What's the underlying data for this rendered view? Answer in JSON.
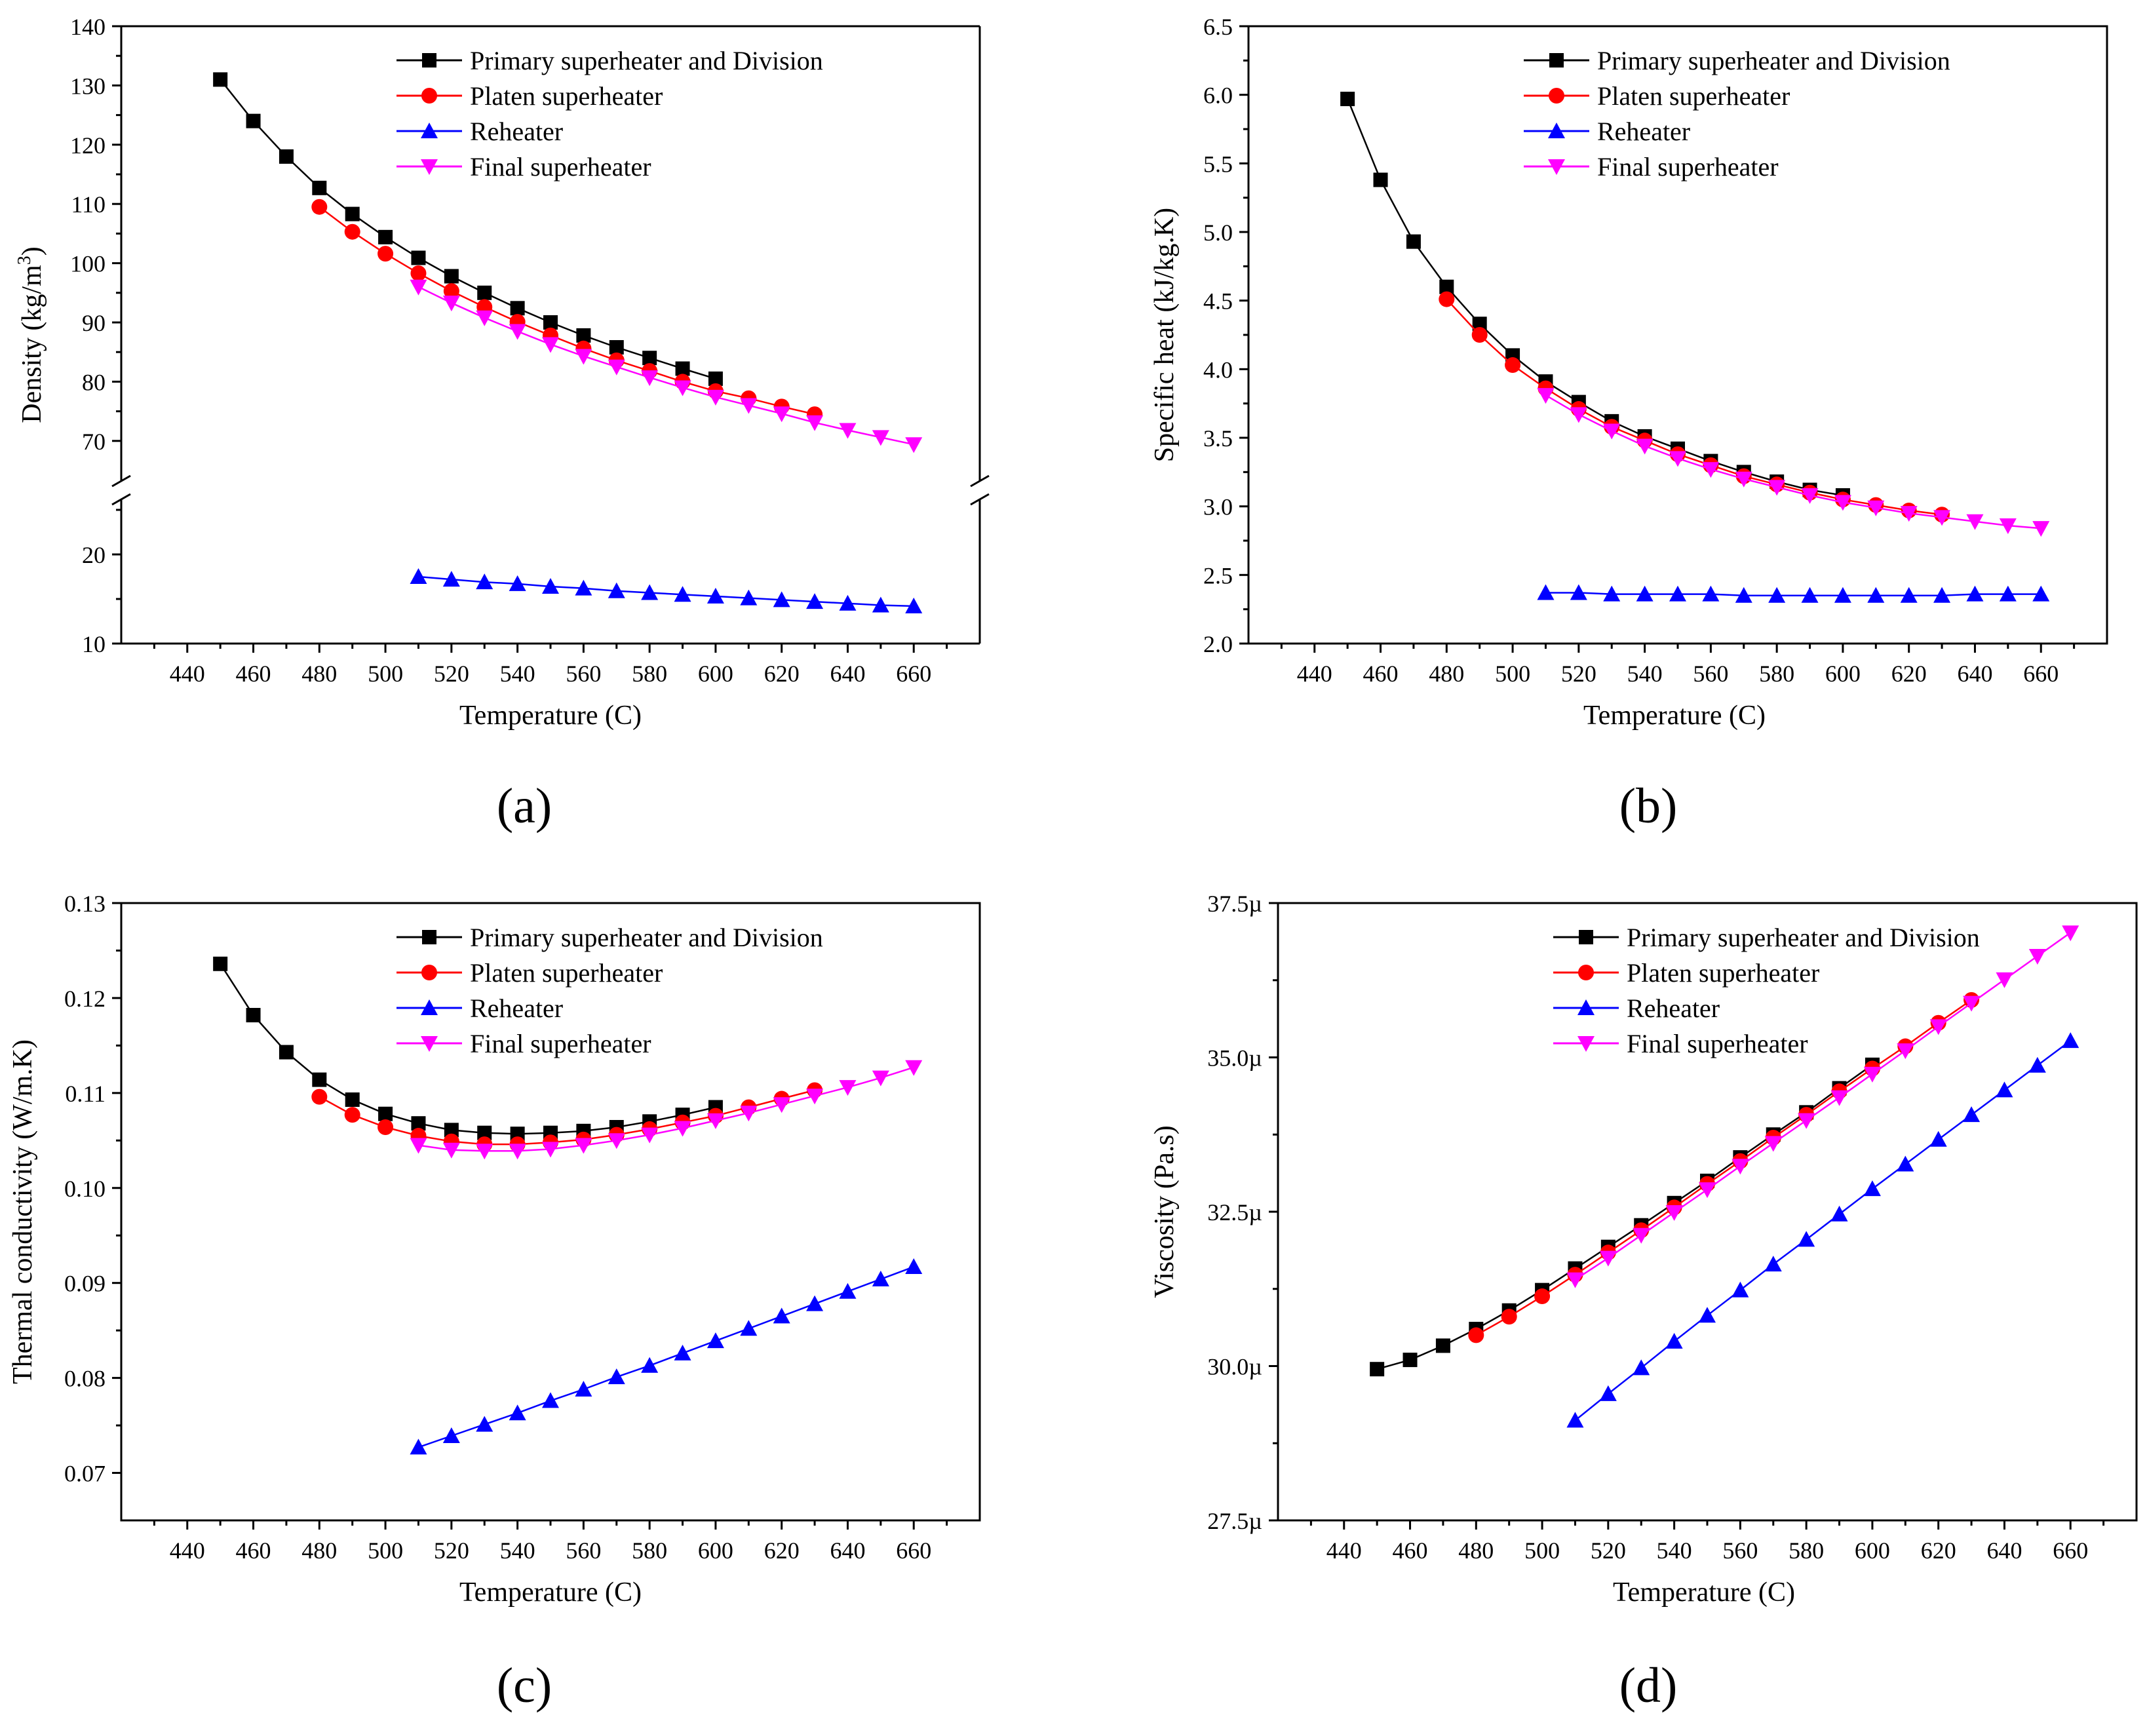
{
  "legend_labels": [
    "Primary superheater and Division",
    "Platen superheater",
    "Reheater",
    "Final superheater"
  ],
  "series_colors": [
    "#000000",
    "#ff0000",
    "#0000ff",
    "#ff00ff"
  ],
  "series_markers": [
    "square",
    "circle",
    "triangle-up",
    "triangle-down"
  ],
  "chart_data": [
    {
      "type": "line",
      "panel_label": "(a)",
      "xlabel": "Temperature (C)",
      "ylabel": "Density (kg/m³)",
      "ylabel_base": "Density (kg/m",
      "ylabel_sup": "3",
      "ylabel_close": ")",
      "xlim": [
        420,
        680
      ],
      "x_ticks": [
        "440",
        "460",
        "480",
        "500",
        "520",
        "540",
        "560",
        "580",
        "600",
        "620",
        "640",
        "660"
      ],
      "axis_break": true,
      "upper_ylim": [
        65,
        140
      ],
      "upper_y_ticks": [
        "70",
        "80",
        "90",
        "100",
        "110",
        "120",
        "130",
        "140"
      ],
      "lower_ylim": [
        10,
        25
      ],
      "lower_y_ticks": [
        "10",
        "20"
      ],
      "legend_position": "top-right",
      "series": [
        {
          "name": "Primary superheater and Division",
          "x": [
            450,
            460,
            470,
            480,
            490,
            500,
            510,
            520,
            530,
            540,
            550,
            560,
            570,
            580,
            590,
            600
          ],
          "y": [
            131,
            124,
            118,
            112.7,
            108.3,
            104.4,
            100.9,
            97.8,
            95,
            92.4,
            90,
            87.8,
            85.8,
            84,
            82.2,
            80.5
          ]
        },
        {
          "name": "Platen superheater",
          "x": [
            480,
            490,
            500,
            510,
            520,
            530,
            540,
            550,
            560,
            570,
            580,
            590,
            600,
            610,
            620,
            630
          ],
          "y": [
            109.5,
            105.3,
            101.6,
            98.3,
            95.3,
            92.6,
            90.1,
            87.8,
            85.6,
            83.6,
            81.8,
            80,
            78.4,
            77.2,
            75.8,
            74.5
          ]
        },
        {
          "name": "Reheater",
          "x": [
            510,
            520,
            530,
            540,
            550,
            560,
            570,
            580,
            590,
            600,
            610,
            620,
            630,
            640,
            650,
            660
          ],
          "y": [
            17.5,
            17.2,
            16.9,
            16.7,
            16.4,
            16.2,
            15.9,
            15.7,
            15.5,
            15.3,
            15.1,
            14.9,
            14.7,
            14.5,
            14.3,
            14.2
          ]
        },
        {
          "name": "Final superheater",
          "x": [
            510,
            520,
            530,
            540,
            550,
            560,
            570,
            580,
            590,
            600,
            610,
            620,
            630,
            640,
            650,
            660
          ],
          "y": [
            96,
            93.3,
            90.8,
            88.5,
            86.3,
            84.3,
            82.5,
            80.7,
            79,
            77.4,
            76,
            74.6,
            73.1,
            71.8,
            70.6,
            69.4
          ]
        }
      ]
    },
    {
      "type": "line",
      "panel_label": "(b)",
      "xlabel": "Temperature (C)",
      "ylabel": "Specific heat (kJ/kg.K)",
      "xlim": [
        420,
        680
      ],
      "x_ticks": [
        "440",
        "460",
        "480",
        "500",
        "520",
        "540",
        "560",
        "580",
        "600",
        "620",
        "640",
        "660"
      ],
      "ylim": [
        2.0,
        6.5
      ],
      "y_ticks": [
        "2.0",
        "2.5",
        "3.0",
        "3.5",
        "4.0",
        "4.5",
        "5.0",
        "5.5",
        "6.0",
        "6.5"
      ],
      "legend_position": "top-right",
      "series": [
        {
          "name": "Primary superheater and Division",
          "x": [
            450,
            460,
            470,
            480,
            490,
            500,
            510,
            520,
            530,
            540,
            550,
            560,
            570,
            580,
            590,
            600
          ],
          "y": [
            5.97,
            5.38,
            4.93,
            4.6,
            4.33,
            4.1,
            3.91,
            3.76,
            3.62,
            3.51,
            3.42,
            3.33,
            3.25,
            3.18,
            3.12,
            3.08
          ]
        },
        {
          "name": "Platen superheater",
          "x": [
            480,
            490,
            500,
            510,
            520,
            530,
            540,
            550,
            560,
            570,
            580,
            590,
            600,
            610,
            620,
            630
          ],
          "y": [
            4.51,
            4.25,
            4.03,
            3.86,
            3.71,
            3.58,
            3.48,
            3.38,
            3.3,
            3.22,
            3.16,
            3.1,
            3.05,
            3.01,
            2.97,
            2.94
          ]
        },
        {
          "name": "Reheater",
          "x": [
            510,
            520,
            530,
            540,
            550,
            560,
            570,
            580,
            590,
            600,
            610,
            620,
            630,
            640,
            650,
            660
          ],
          "y": [
            2.37,
            2.37,
            2.36,
            2.36,
            2.36,
            2.36,
            2.35,
            2.35,
            2.35,
            2.35,
            2.35,
            2.35,
            2.35,
            2.36,
            2.36,
            2.36
          ]
        },
        {
          "name": "Final superheater",
          "x": [
            510,
            520,
            530,
            540,
            550,
            560,
            570,
            580,
            590,
            600,
            610,
            620,
            630,
            640,
            650,
            660
          ],
          "y": [
            3.81,
            3.67,
            3.55,
            3.44,
            3.35,
            3.27,
            3.2,
            3.14,
            3.08,
            3.03,
            2.99,
            2.95,
            2.92,
            2.89,
            2.86,
            2.84
          ]
        }
      ]
    },
    {
      "type": "line",
      "panel_label": "(c)",
      "xlabel": "Temperature (C)",
      "ylabel": "Thermal conductivity (W/m.K)",
      "xlim": [
        420,
        680
      ],
      "x_ticks": [
        "440",
        "460",
        "480",
        "500",
        "520",
        "540",
        "560",
        "580",
        "600",
        "620",
        "640",
        "660"
      ],
      "ylim": [
        0.065,
        0.13
      ],
      "y_ticks": [
        "0.07",
        "0.08",
        "0.09",
        "0.10",
        "0.11",
        "0.12",
        "0.13"
      ],
      "legend_position": "top-right",
      "series": [
        {
          "name": "Primary superheater and Division",
          "x": [
            450,
            460,
            470,
            480,
            490,
            500,
            510,
            520,
            530,
            540,
            550,
            560,
            570,
            580,
            590,
            600
          ],
          "y": [
            0.1236,
            0.1182,
            0.1143,
            0.1114,
            0.1093,
            0.1078,
            0.1068,
            0.1061,
            0.1058,
            0.1057,
            0.1058,
            0.106,
            0.1064,
            0.107,
            0.1077,
            0.1085
          ]
        },
        {
          "name": "Platen superheater",
          "x": [
            480,
            490,
            500,
            510,
            520,
            530,
            540,
            550,
            560,
            570,
            580,
            590,
            600,
            610,
            620,
            630
          ],
          "y": [
            0.1096,
            0.1077,
            0.1064,
            0.1055,
            0.1049,
            0.1046,
            0.1046,
            0.1048,
            0.1051,
            0.1056,
            0.1062,
            0.1069,
            0.1076,
            0.1085,
            0.1094,
            0.1103
          ]
        },
        {
          "name": "Reheater",
          "x": [
            510,
            520,
            530,
            540,
            550,
            560,
            570,
            580,
            590,
            600,
            610,
            620,
            630,
            640,
            650,
            660
          ],
          "y": [
            0.0727,
            0.0739,
            0.0751,
            0.0763,
            0.0776,
            0.0788,
            0.0801,
            0.0813,
            0.0826,
            0.0839,
            0.0852,
            0.0865,
            0.0878,
            0.0891,
            0.0904,
            0.0917
          ]
        },
        {
          "name": "Final superheater",
          "x": [
            510,
            520,
            530,
            540,
            550,
            560,
            570,
            580,
            590,
            600,
            610,
            620,
            630,
            640,
            650,
            660
          ],
          "y": [
            0.1045,
            0.104,
            0.1039,
            0.1039,
            0.1041,
            0.1045,
            0.105,
            0.1056,
            0.1063,
            0.1071,
            0.1079,
            0.1088,
            0.1097,
            0.1106,
            0.1116,
            0.1127
          ]
        }
      ]
    },
    {
      "type": "line",
      "panel_label": "(d)",
      "xlabel": "Temperature (C)",
      "ylabel": "Viscosity (Pa.s)",
      "xlim": [
        420,
        680
      ],
      "x_ticks": [
        "440",
        "460",
        "480",
        "500",
        "520",
        "540",
        "560",
        "580",
        "600",
        "620",
        "640",
        "660"
      ],
      "ylim": [
        27.5,
        37.5
      ],
      "y_tick_values": [
        27.5,
        30.0,
        32.5,
        35.0,
        37.5
      ],
      "y_ticks": [
        "27.5µ",
        "30.0µ",
        "32.5µ",
        "35.0µ",
        "37.5µ"
      ],
      "legend_position": "top-right",
      "series": [
        {
          "name": "Primary superheater and Division",
          "x": [
            450,
            460,
            470,
            480,
            490,
            500,
            510,
            520,
            530,
            540,
            550,
            560,
            570,
            580,
            590,
            600
          ],
          "y": [
            29.95,
            30.1,
            30.33,
            30.6,
            30.9,
            31.23,
            31.58,
            31.93,
            32.28,
            32.64,
            33.0,
            33.38,
            33.75,
            34.11,
            34.5,
            34.88
          ]
        },
        {
          "name": "Platen superheater",
          "x": [
            480,
            490,
            500,
            510,
            520,
            530,
            540,
            550,
            560,
            570,
            580,
            590,
            600,
            610,
            620,
            630
          ],
          "y": [
            30.5,
            30.8,
            31.13,
            31.48,
            31.84,
            32.2,
            32.57,
            32.95,
            33.32,
            33.7,
            34.07,
            34.45,
            34.82,
            35.18,
            35.56,
            35.93
          ]
        },
        {
          "name": "Reheater",
          "x": [
            510,
            520,
            530,
            540,
            550,
            560,
            570,
            580,
            590,
            600,
            610,
            620,
            630,
            640,
            650,
            660
          ],
          "y": [
            29.12,
            29.55,
            29.97,
            30.4,
            30.82,
            31.23,
            31.65,
            32.05,
            32.46,
            32.87,
            33.27,
            33.67,
            34.07,
            34.47,
            34.87,
            35.27
          ]
        },
        {
          "name": "Final superheater",
          "x": [
            510,
            520,
            530,
            540,
            550,
            560,
            570,
            580,
            590,
            600,
            610,
            620,
            630,
            640,
            650,
            660
          ],
          "y": [
            31.4,
            31.75,
            32.12,
            32.49,
            32.86,
            33.24,
            33.61,
            33.98,
            34.35,
            34.73,
            35.11,
            35.5,
            35.88,
            36.26,
            36.64,
            37.02
          ]
        }
      ]
    }
  ]
}
